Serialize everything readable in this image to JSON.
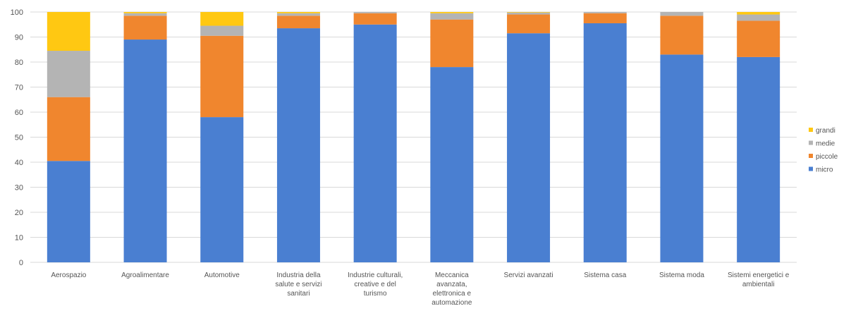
{
  "chart_data": {
    "type": "bar",
    "stacked": true,
    "categories": [
      [
        "Aerospazio"
      ],
      [
        "Agroalimentare"
      ],
      [
        "Automotive"
      ],
      [
        "Industria della",
        "salute e servizi",
        "sanitari"
      ],
      [
        "Industrie culturali,",
        "creative e del",
        "turismo"
      ],
      [
        "Meccanica",
        "avanzata,",
        "elettronica e",
        "automazione"
      ],
      [
        "Servizi avanzati"
      ],
      [
        "Sistema casa"
      ],
      [
        "Sistema moda"
      ],
      [
        "Sistemi energetici e",
        "ambientali"
      ]
    ],
    "series": [
      {
        "name": "micro",
        "color": "#4a7fd1",
        "values": [
          40.5,
          89,
          58,
          93.5,
          95,
          78,
          91.5,
          95.5,
          83,
          82
        ]
      },
      {
        "name": "piccole",
        "color": "#f0862e",
        "values": [
          25.5,
          9.5,
          32.5,
          5,
          4.5,
          19,
          7.5,
          4,
          15.5,
          14.5
        ]
      },
      {
        "name": "medie",
        "color": "#b4b4b4",
        "values": [
          18.5,
          1,
          4,
          1,
          0.5,
          2.5,
          0.8,
          0.5,
          1.5,
          2.5
        ]
      },
      {
        "name": "grandi",
        "color": "#ffc812",
        "values": [
          15.5,
          0.5,
          5.5,
          0.5,
          0,
          0.5,
          0.2,
          0,
          0,
          1
        ]
      }
    ],
    "legend_order": [
      "grandi",
      "medie",
      "piccole",
      "micro"
    ],
    "ylim": [
      0,
      100
    ],
    "yticks": [
      0,
      10,
      20,
      30,
      40,
      50,
      60,
      70,
      80,
      90,
      100
    ],
    "grid": true,
    "legend_position": "right"
  }
}
